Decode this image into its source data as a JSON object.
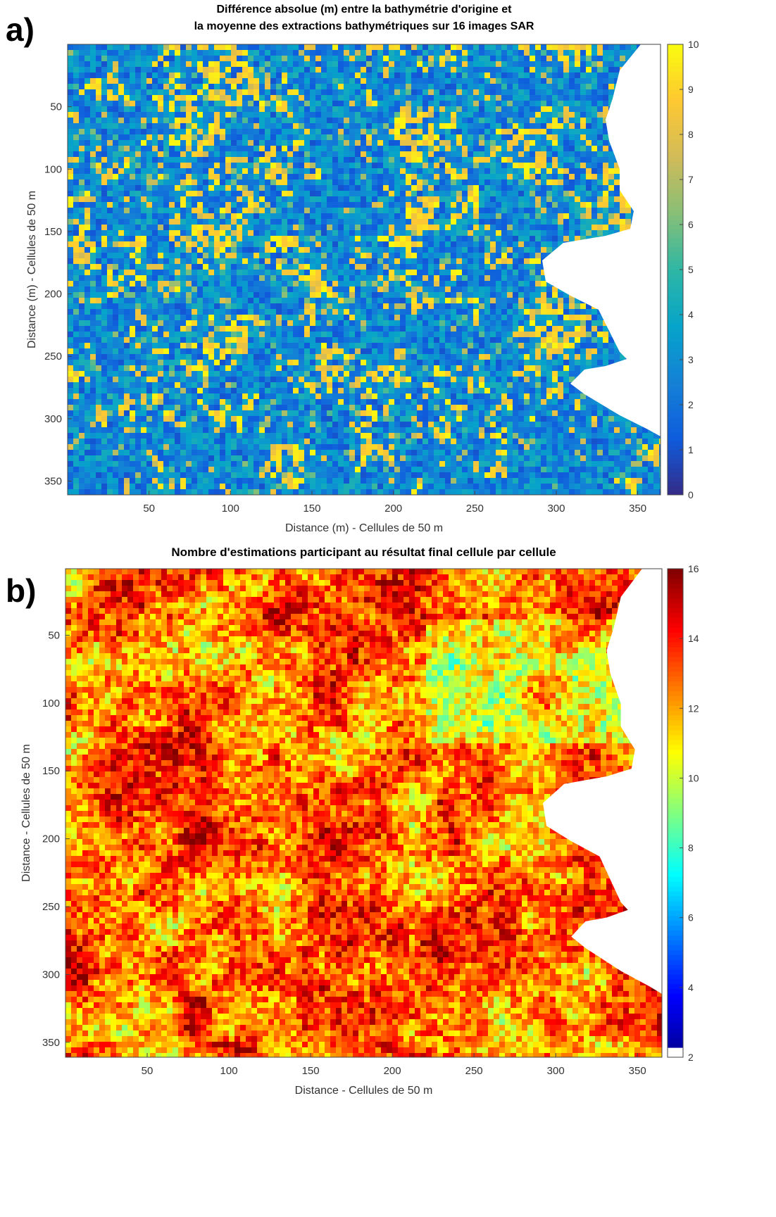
{
  "chart_data": [
    {
      "type": "heatmap",
      "panel_label": "a)",
      "title": [
        "Différence absolue (m) entre la bathymétrie d'origine et",
        "la moyenne des extractions bathymétriques sur 16 images SAR"
      ],
      "xlabel": "Distance (m) - Cellules de 50 m",
      "ylabel": "Distance (m) - Cellules de 50 m",
      "xlim": [
        0,
        364
      ],
      "ylim": [
        0,
        361
      ],
      "y_reversed": true,
      "xticks": [
        50,
        100,
        150,
        200,
        250,
        300,
        350
      ],
      "yticks": [
        50,
        100,
        150,
        200,
        250,
        300,
        350
      ],
      "colormap": "parula",
      "clim": [
        0,
        10
      ],
      "cticks": [
        0,
        1,
        2,
        3,
        4,
        5,
        6,
        7,
        8,
        9,
        10
      ]
    },
    {
      "type": "heatmap",
      "panel_label": "b)",
      "title": "Nombre d'estimations participant au résultat final cellule par cellule",
      "xlabel": "Distance  - Cellules de 50 m",
      "ylabel": "Distance  - Cellules de 50 m",
      "xlim": [
        0,
        365
      ],
      "ylim": [
        1,
        361
      ],
      "y_reversed": true,
      "xticks": [
        50,
        100,
        150,
        200,
        250,
        300,
        350
      ],
      "yticks": [
        50,
        100,
        150,
        200,
        250,
        300,
        350
      ],
      "colormap": "jet",
      "clim": [
        2,
        16
      ],
      "cticks": [
        2,
        4,
        6,
        8,
        10,
        12,
        14,
        16
      ]
    }
  ]
}
